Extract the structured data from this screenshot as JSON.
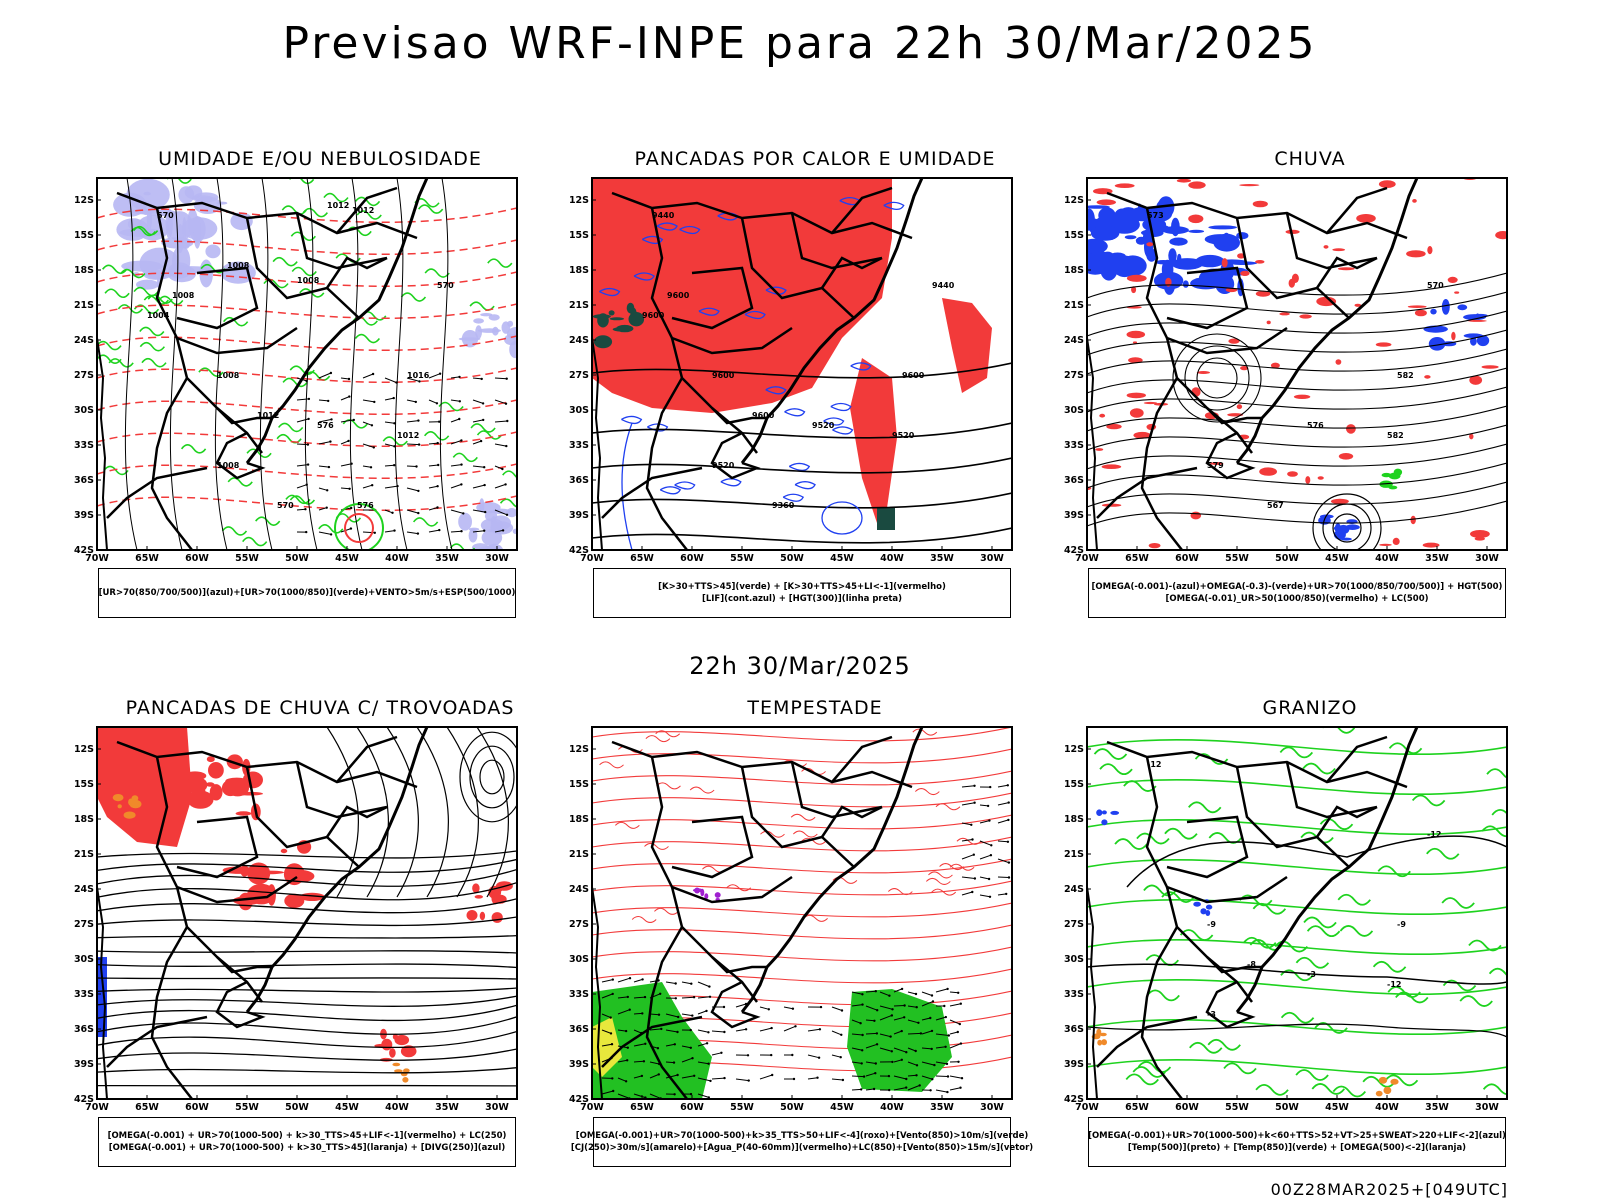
{
  "page": {
    "title": "Previsao WRF-INPE  para 22h 30/Mar/2025",
    "subtitle": "22h 30/Mar/2025",
    "footer": "00Z28MAR2025+[049UTC]"
  },
  "axes": {
    "lat_labels": [
      "12S",
      "15S",
      "18S",
      "21S",
      "24S",
      "27S",
      "30S",
      "33S",
      "36S",
      "39S",
      "42S"
    ],
    "lon_labels": [
      "70W",
      "65W",
      "60W",
      "55W",
      "50W",
      "45W",
      "40W",
      "35W",
      "30W"
    ]
  },
  "colors": {
    "red": "#f23a3a",
    "green": "#1ed21e",
    "blue": "#2040f0",
    "lavender": "#b7b7f3",
    "orange": "#f08a2a",
    "yellow": "#e8e83c",
    "purple": "#a020d0",
    "dark_green": "#1a4a40"
  },
  "panels": [
    {
      "id": "umidade",
      "title": "UMIDADE E/OU NEBULOSIDADE",
      "legend": [
        "[UR>70(850/700/500)](azul)+[UR>70(1000/850)](verde)+VENTO>5m/s+ESP(500/1000)"
      ],
      "contour_labels": [
        "1012",
        "1012",
        "1008",
        "1008",
        "1004",
        "1008",
        "1008",
        "1012",
        "1016",
        "1012",
        "1008",
        "576",
        "570",
        "570",
        "570",
        "576"
      ]
    },
    {
      "id": "pancadas-calor",
      "title": "PANCADAS POR CALOR E UMIDADE",
      "legend": [
        "[K>30+TTS>45](verde) + [K>30+TTS>45+LI<-1](vermelho)",
        "[LIF](cont.azul) + [HGT(300)](linha preta)"
      ],
      "contour_labels": [
        "9600",
        "9600",
        "9600",
        "9600",
        "9600",
        "9520",
        "9520",
        "9520",
        "9440",
        "9440",
        "9360"
      ]
    },
    {
      "id": "chuva",
      "title": "CHUVA",
      "legend": [
        "[OMEGA(-0.001)-(azul)+OMEGA(-0.3)-(verde)+UR>70(1000/850/700/500)] + HGT(500)",
        "[OMEGA(-0.01)_UR>50(1000/850)(vermelho) + LC(500)"
      ],
      "contour_labels": [
        "582",
        "582",
        "579",
        "576",
        "573",
        "570",
        "567"
      ]
    },
    {
      "id": "trovoadas",
      "title": "PANCADAS DE CHUVA C/ TROVOADAS",
      "legend": [
        "[OMEGA(-0.001) + UR>70(1000-500) + k>30_TTS>45+LIF<-1](vermelho) + LC(250)",
        "[OMEGA(-0.001) + UR>70(1000-500) + k>30_TTS>45](laranja) + [DIVG(250)](azul)"
      ],
      "contour_labels": []
    },
    {
      "id": "tempestade",
      "title": "TEMPESTADE",
      "legend": [
        "[OMEGA(-0.001)+UR>70(1000-500)+k>35_TTS>50+LIF<-4](roxo)+[Vento(850)>10m/s](verde)",
        "[CJ(250)>30m/s](amarelo)+[Agua_P(40-60mm)](vermelho)+LC(850)+[Vento(850)>15m/s](vetor)"
      ],
      "contour_labels": []
    },
    {
      "id": "granizo",
      "title": "GRANIZO",
      "legend": [
        "[OMEGA(-0.001)+UR>70(1000-500)+k<60+TTS>52+VT>25+SWEAT>220+LIF<-2](azul)",
        "[Temp(500)](preto) + [Temp(850)](verde) + [OMEGA(500)<-2](laranja)"
      ],
      "contour_labels": [
        "-9",
        "-8",
        "-9",
        "-12",
        "-3",
        "-3",
        "-12",
        "-12"
      ]
    }
  ]
}
